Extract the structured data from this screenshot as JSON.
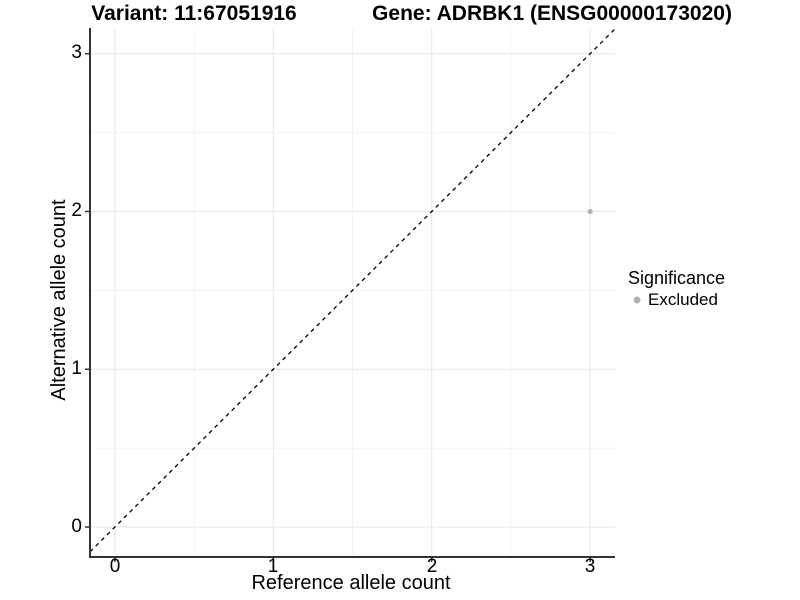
{
  "header": {
    "variant_title": "Variant: 11:67051916",
    "gene_title": "Gene: ADRBK1 (ENSG00000173020)"
  },
  "axes": {
    "x_label": "Reference allele count",
    "y_label": "Alternative allele count",
    "x_tick_labels": [
      "0",
      "1",
      "2",
      "3"
    ],
    "y_tick_labels": [
      "0",
      "1",
      "2",
      "3"
    ]
  },
  "legend": {
    "title": "Significance",
    "items": [
      {
        "label": "Excluded",
        "color": "#b2b2b2"
      }
    ]
  },
  "colors": {
    "excluded_point": "#b2b2b2",
    "grid_major": "#e6e6e6",
    "grid_minor": "#f2f2f2",
    "axis_line": "#333333",
    "reference_line": "#000000",
    "text": "#000000",
    "background": "#ffffff"
  },
  "chart_data": {
    "type": "scatter",
    "titles": [
      "Variant: 11:67051916",
      "Gene: ADRBK1 (ENSG00000173020)"
    ],
    "xlabel": "Reference allele count",
    "ylabel": "Alternative allele count",
    "xlim": [
      -0.157,
      3.157
    ],
    "ylim": [
      -0.19,
      3.163
    ],
    "x_ticks": [
      0,
      1,
      2,
      3
    ],
    "y_ticks": [
      0,
      1,
      2,
      3
    ],
    "x_minor_ticks": [
      0.5,
      1.5,
      2.5
    ],
    "y_minor_ticks": [
      0.5,
      1.5,
      2.5
    ],
    "grid": true,
    "legend_position": "right",
    "legend_title": "Significance",
    "series": [
      {
        "name": "Excluded",
        "color": "#b2b2b2",
        "marker": "circle",
        "point_radius": 2.6,
        "points": [
          {
            "x": 3,
            "y": 2
          }
        ]
      }
    ],
    "reference_line": {
      "kind": "identity",
      "equation": "y = x",
      "style": "dashed",
      "color": "#000000"
    }
  }
}
